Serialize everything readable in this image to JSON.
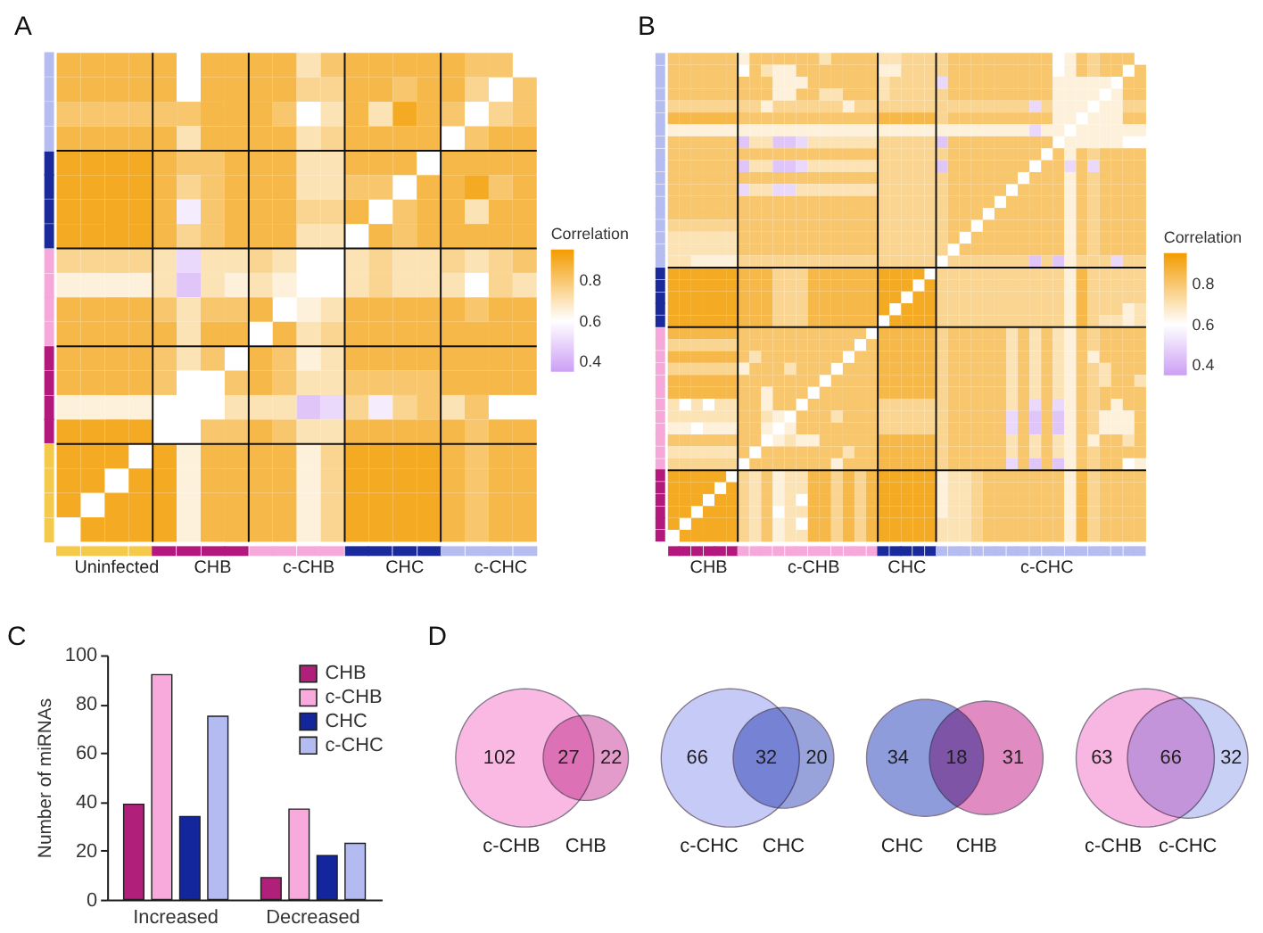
{
  "chart_data": [
    {
      "type": "heatmap",
      "title": "A",
      "clabel": "Correlation",
      "clim": [
        0.35,
        0.95
      ],
      "cticks": [
        0.4,
        0.6,
        0.8
      ],
      "categories": [
        null,
        null,
        "Uninfected",
        null,
        null,
        null,
        "CHB",
        null,
        null,
        null,
        "c-CHB",
        null,
        null,
        null,
        "CHC",
        null,
        null,
        null,
        "c-CHC",
        null
      ],
      "y_categories": [
        null,
        null,
        null,
        null,
        null,
        null,
        null,
        null,
        null,
        null,
        null,
        null,
        null,
        null,
        null,
        null,
        null,
        null,
        null,
        null
      ],
      "colors": [
        "#f5c94a",
        "#f5c94a",
        "#f5c94a",
        "#f5c94a",
        "#b3197d",
        "#b3197d",
        "#b3197d",
        "#b3197d",
        "#f5a8d9",
        "#f5a8d9",
        "#f5a8d9",
        "#f5a8d9",
        "#1b2a9a",
        "#1b2a9a",
        "#1b2a9a",
        "#1b2a9a",
        "#b4bcf0",
        "#b4bcf0",
        "#b4bcf0",
        "#b4bcf0"
      ],
      "cells": [
        [
          0.85,
          0.85,
          0.85,
          0.85,
          0.85,
          0.6,
          0.85,
          0.85,
          0.85,
          0.85,
          0.7,
          0.8,
          0.85,
          0.85,
          0.85,
          0.85,
          0.85,
          0.8,
          0.8,
          null
        ],
        [
          0.85,
          0.85,
          0.85,
          0.85,
          0.85,
          0.6,
          0.85,
          0.85,
          0.85,
          0.85,
          0.75,
          0.75,
          0.85,
          0.85,
          0.8,
          0.85,
          0.85,
          0.75,
          null,
          0.8
        ],
        [
          0.8,
          0.8,
          0.8,
          0.8,
          0.8,
          0.8,
          0.85,
          0.85,
          0.85,
          0.8,
          0.6,
          0.7,
          0.85,
          0.7,
          0.9,
          0.85,
          0.8,
          null,
          0.75,
          0.8
        ],
        [
          0.85,
          0.85,
          0.85,
          0.85,
          0.85,
          0.7,
          0.85,
          0.85,
          0.85,
          0.85,
          0.7,
          0.75,
          0.85,
          0.85,
          0.85,
          0.85,
          null,
          0.8,
          0.85,
          0.85
        ],
        [
          0.9,
          0.9,
          0.9,
          0.9,
          0.85,
          0.8,
          0.8,
          0.85,
          0.85,
          0.85,
          0.7,
          0.7,
          0.85,
          0.85,
          0.85,
          null,
          0.85,
          0.85,
          0.85,
          0.85
        ],
        [
          0.9,
          0.9,
          0.9,
          0.9,
          0.85,
          0.75,
          0.8,
          0.85,
          0.85,
          0.85,
          0.7,
          0.7,
          0.8,
          0.8,
          null,
          0.85,
          0.85,
          0.9,
          0.8,
          0.85
        ],
        [
          0.9,
          0.9,
          0.9,
          0.9,
          0.85,
          0.55,
          0.8,
          0.85,
          0.85,
          0.85,
          0.75,
          0.75,
          0.85,
          null,
          0.8,
          0.85,
          0.85,
          0.7,
          0.85,
          0.85
        ],
        [
          0.9,
          0.9,
          0.9,
          0.9,
          0.85,
          0.75,
          0.8,
          0.85,
          0.85,
          0.85,
          0.7,
          0.7,
          null,
          0.85,
          0.8,
          0.85,
          0.85,
          0.85,
          0.85,
          0.85
        ],
        [
          0.75,
          0.75,
          0.75,
          0.75,
          0.7,
          0.5,
          0.7,
          0.7,
          0.75,
          0.7,
          0.6,
          null,
          0.7,
          0.75,
          0.7,
          0.7,
          0.75,
          0.7,
          0.75,
          0.8
        ],
        [
          0.65,
          0.65,
          0.65,
          0.65,
          0.7,
          0.45,
          0.7,
          0.65,
          0.7,
          0.65,
          null,
          0.6,
          0.7,
          0.75,
          0.7,
          0.7,
          0.7,
          0.6,
          0.75,
          0.7
        ],
        [
          0.85,
          0.85,
          0.85,
          0.85,
          0.8,
          0.7,
          0.8,
          0.8,
          0.85,
          null,
          0.65,
          0.7,
          0.85,
          0.85,
          0.85,
          0.85,
          0.85,
          0.8,
          0.85,
          0.85
        ],
        [
          0.85,
          0.85,
          0.85,
          0.85,
          0.85,
          0.7,
          0.85,
          0.85,
          null,
          0.85,
          0.7,
          0.75,
          0.85,
          0.85,
          0.85,
          0.85,
          0.85,
          0.85,
          0.85,
          0.85
        ],
        [
          0.85,
          0.85,
          0.85,
          0.85,
          0.8,
          0.7,
          0.8,
          null,
          0.85,
          0.8,
          0.65,
          0.7,
          0.85,
          0.85,
          0.85,
          0.85,
          0.85,
          0.85,
          0.85,
          0.85
        ],
        [
          0.85,
          0.85,
          0.85,
          0.85,
          0.8,
          0.6,
          null,
          0.8,
          0.85,
          0.8,
          0.7,
          0.7,
          0.8,
          0.8,
          0.8,
          0.8,
          0.85,
          0.85,
          0.85,
          0.85
        ],
        [
          0.65,
          0.65,
          0.65,
          0.65,
          0.6,
          null,
          0.6,
          0.7,
          0.7,
          0.7,
          0.45,
          0.5,
          0.75,
          0.55,
          0.75,
          0.8,
          0.7,
          0.8,
          0.6,
          0.6
        ],
        [
          0.9,
          0.9,
          0.9,
          0.9,
          null,
          0.6,
          0.8,
          0.8,
          0.85,
          0.8,
          0.7,
          0.7,
          0.85,
          0.85,
          0.85,
          0.85,
          0.85,
          0.8,
          0.85,
          0.85
        ],
        [
          0.9,
          0.9,
          0.9,
          null,
          0.9,
          0.65,
          0.85,
          0.85,
          0.85,
          0.85,
          0.65,
          0.75,
          0.9,
          0.9,
          0.9,
          0.9,
          0.85,
          0.8,
          0.85,
          0.85
        ],
        [
          0.9,
          0.9,
          null,
          0.9,
          0.9,
          0.65,
          0.85,
          0.85,
          0.85,
          0.85,
          0.65,
          0.75,
          0.9,
          0.9,
          0.9,
          0.9,
          0.85,
          0.8,
          0.85,
          0.85
        ],
        [
          0.9,
          null,
          0.9,
          0.9,
          0.9,
          0.65,
          0.85,
          0.85,
          0.85,
          0.85,
          0.65,
          0.75,
          0.9,
          0.9,
          0.9,
          0.9,
          0.85,
          0.8,
          0.85,
          0.85
        ],
        [
          null,
          0.9,
          0.9,
          0.9,
          0.9,
          0.65,
          0.85,
          0.85,
          0.85,
          0.85,
          0.65,
          0.75,
          0.9,
          0.9,
          0.9,
          0.9,
          0.85,
          0.8,
          0.85,
          0.85
        ]
      ]
    },
    {
      "type": "heatmap",
      "title": "B",
      "clabel": "Correlation",
      "clim": [
        0.35,
        0.95
      ],
      "cticks": [
        0.4,
        0.6,
        0.8
      ],
      "categories": [
        null,
        null,
        null,
        "CHB",
        null,
        null,
        null,
        null,
        null,
        null,
        null,
        null,
        "c-CHB",
        null,
        null,
        null,
        null,
        null,
        null,
        null,
        "CHC",
        null,
        null,
        null,
        null,
        null,
        null,
        null,
        null,
        null,
        null,
        null,
        "c-CHC",
        null,
        null,
        null,
        null,
        null,
        null,
        null,
        null
      ],
      "y_categories": [
        null,
        null,
        null,
        null,
        null,
        null,
        null,
        null,
        null,
        null,
        null,
        null,
        null,
        null,
        null,
        null,
        null,
        null,
        null,
        null,
        null,
        null,
        null,
        null,
        null,
        null,
        null,
        null,
        null,
        null,
        null,
        null,
        null,
        null,
        null,
        null,
        null,
        null,
        null,
        null,
        null
      ],
      "colors": [
        "#b3197d",
        "#b3197d",
        "#b3197d",
        "#b3197d",
        "#b3197d",
        "#b3197d",
        "#f5a8d9",
        "#f5a8d9",
        "#f5a8d9",
        "#f5a8d9",
        "#f5a8d9",
        "#f5a8d9",
        "#f5a8d9",
        "#f5a8d9",
        "#f5a8d9",
        "#f5a8d9",
        "#f5a8d9",
        "#f5a8d9",
        "#1b2a9a",
        "#1b2a9a",
        "#1b2a9a",
        "#1b2a9a",
        "#1b2a9a",
        "#b4bcf0",
        "#b4bcf0",
        "#b4bcf0",
        "#b4bcf0",
        "#b4bcf0",
        "#b4bcf0",
        "#b4bcf0",
        "#b4bcf0",
        "#b4bcf0",
        "#b4bcf0",
        "#b4bcf0",
        "#b4bcf0",
        "#b4bcf0",
        "#b4bcf0",
        "#b4bcf0",
        "#b4bcf0",
        "#b4bcf0",
        "#b4bcf0"
      ],
      "cells": [
        [
          0.8,
          0.8,
          0.8,
          0.8,
          0.8,
          0.8,
          0.65,
          0.8,
          0.8,
          0.8,
          0.8,
          0.8,
          0.8,
          0.7,
          0.8,
          0.8,
          0.8,
          0.8,
          0.7,
          0.7,
          0.75,
          0.75,
          0.75,
          0.75,
          0.8,
          0.8,
          0.8,
          0.8,
          0.8,
          0.8,
          0.8,
          0.8,
          0.8,
          0.6,
          0.65,
          0.8,
          0.75,
          0.8,
          0.8,
          0.8,
          null
        ],
        [
          0.8,
          0.8,
          0.8,
          0.8,
          0.8,
          0.8,
          0.6,
          0.8,
          0.7,
          0.65,
          0.65,
          0.8,
          0.8,
          0.8,
          0.8,
          0.8,
          0.8,
          0.8,
          0.65,
          0.65,
          0.75,
          0.75,
          0.75,
          0.75,
          0.8,
          0.8,
          0.8,
          0.8,
          0.8,
          0.8,
          0.8,
          0.8,
          0.8,
          0.6,
          0.65,
          0.8,
          0.75,
          0.8,
          0.8,
          null,
          0.8
        ],
        [
          0.8,
          0.8,
          0.8,
          0.8,
          0.8,
          0.8,
          0.8,
          0.8,
          0.8,
          0.65,
          0.65,
          0.65,
          0.8,
          0.8,
          0.8,
          0.8,
          0.8,
          0.8,
          0.7,
          0.75,
          0.75,
          0.75,
          0.75,
          0.5,
          0.8,
          0.8,
          0.8,
          0.8,
          0.8,
          0.8,
          0.8,
          0.8,
          0.8,
          0.65,
          0.65,
          0.65,
          0.65,
          0.65,
          null,
          0.8,
          0.8
        ],
        [
          0.8,
          0.8,
          0.8,
          0.8,
          0.8,
          0.8,
          0.8,
          0.8,
          0.8,
          0.65,
          0.65,
          0.8,
          0.8,
          0.7,
          0.7,
          0.8,
          0.8,
          0.8,
          0.7,
          0.75,
          0.75,
          0.75,
          0.75,
          0.75,
          0.8,
          0.8,
          0.8,
          0.8,
          0.8,
          0.8,
          0.8,
          0.8,
          0.8,
          0.65,
          0.65,
          0.65,
          0.65,
          null,
          0.65,
          0.8,
          0.8
        ],
        [
          0.75,
          0.75,
          0.75,
          0.75,
          0.75,
          0.75,
          0.75,
          0.75,
          0.65,
          0.75,
          0.75,
          0.75,
          0.75,
          0.75,
          0.75,
          0.65,
          0.75,
          0.75,
          0.75,
          0.75,
          0.75,
          0.75,
          0.75,
          0.75,
          0.75,
          0.75,
          0.75,
          0.75,
          0.75,
          0.75,
          0.75,
          0.5,
          0.75,
          0.65,
          0.65,
          0.65,
          null,
          0.65,
          0.65,
          0.75,
          0.75
        ],
        [
          0.85,
          0.85,
          0.85,
          0.85,
          0.85,
          0.85,
          0.8,
          0.8,
          0.8,
          0.8,
          0.8,
          0.8,
          0.8,
          0.8,
          0.8,
          0.8,
          0.8,
          0.8,
          0.85,
          0.85,
          0.85,
          0.85,
          0.85,
          0.75,
          0.8,
          0.8,
          0.8,
          0.8,
          0.8,
          0.8,
          0.8,
          0.8,
          0.8,
          0.65,
          0.65,
          null,
          0.65,
          0.65,
          0.65,
          0.8,
          0.8
        ],
        [
          0.65,
          0.65,
          0.65,
          0.65,
          0.65,
          0.65,
          0.65,
          0.65,
          0.65,
          0.65,
          0.65,
          0.65,
          0.65,
          0.65,
          0.65,
          0.65,
          0.65,
          0.65,
          0.65,
          0.65,
          0.65,
          0.65,
          0.65,
          0.65,
          0.65,
          0.65,
          0.65,
          0.65,
          0.65,
          0.65,
          0.65,
          0.5,
          0.65,
          0.65,
          null,
          0.65,
          0.65,
          0.65,
          0.65,
          0.65,
          0.65
        ],
        [
          0.8,
          0.8,
          0.8,
          0.8,
          0.8,
          0.8,
          0.45,
          0.7,
          0.7,
          0.45,
          0.45,
          0.5,
          0.7,
          0.7,
          0.7,
          0.7,
          0.7,
          0.7,
          0.75,
          0.75,
          0.75,
          0.75,
          0.75,
          0.45,
          0.8,
          0.8,
          0.8,
          0.8,
          0.8,
          0.8,
          0.8,
          0.8,
          0.8,
          null,
          0.65,
          0.65,
          0.65,
          0.65,
          0.65,
          0.6,
          0.6
        ],
        [
          0.8,
          0.8,
          0.8,
          0.8,
          0.8,
          0.8,
          0.8,
          0.8,
          0.8,
          0.8,
          0.8,
          0.8,
          0.8,
          0.8,
          0.8,
          0.8,
          0.8,
          0.8,
          0.75,
          0.75,
          0.75,
          0.75,
          0.75,
          0.75,
          0.8,
          0.8,
          0.8,
          0.8,
          0.8,
          0.8,
          0.8,
          0.8,
          null,
          0.8,
          0.65,
          0.8,
          0.75,
          0.8,
          0.8,
          0.8,
          0.8
        ],
        [
          0.8,
          0.8,
          0.8,
          0.8,
          0.8,
          0.8,
          0.45,
          0.7,
          0.7,
          0.45,
          0.45,
          0.5,
          0.7,
          0.7,
          0.7,
          0.7,
          0.7,
          0.7,
          0.75,
          0.75,
          0.75,
          0.75,
          0.75,
          0.45,
          0.8,
          0.8,
          0.8,
          0.8,
          0.8,
          0.8,
          0.8,
          null,
          0.8,
          0.8,
          0.5,
          0.8,
          0.5,
          0.8,
          0.8,
          0.8,
          0.8
        ],
        [
          0.8,
          0.8,
          0.8,
          0.8,
          0.8,
          0.8,
          0.8,
          0.8,
          0.8,
          0.8,
          0.8,
          0.8,
          0.8,
          0.8,
          0.8,
          0.8,
          0.8,
          0.8,
          0.75,
          0.75,
          0.75,
          0.75,
          0.75,
          0.75,
          0.8,
          0.8,
          0.8,
          0.8,
          0.8,
          0.8,
          null,
          0.8,
          0.8,
          0.8,
          0.65,
          0.8,
          0.75,
          0.8,
          0.8,
          0.8,
          0.8
        ],
        [
          0.8,
          0.8,
          0.8,
          0.8,
          0.8,
          0.8,
          0.5,
          0.7,
          0.7,
          0.5,
          0.5,
          0.7,
          0.7,
          0.7,
          0.7,
          0.7,
          0.7,
          0.7,
          0.75,
          0.75,
          0.75,
          0.75,
          0.75,
          0.75,
          0.8,
          0.8,
          0.8,
          0.8,
          0.8,
          null,
          0.8,
          0.8,
          0.8,
          0.8,
          0.65,
          0.8,
          0.75,
          0.8,
          0.8,
          0.8,
          0.8
        ],
        [
          0.8,
          0.8,
          0.8,
          0.8,
          0.8,
          0.8,
          0.8,
          0.8,
          0.8,
          0.8,
          0.8,
          0.8,
          0.8,
          0.8,
          0.8,
          0.8,
          0.8,
          0.8,
          0.75,
          0.75,
          0.75,
          0.75,
          0.75,
          0.75,
          0.8,
          0.8,
          0.8,
          0.8,
          null,
          0.8,
          0.8,
          0.8,
          0.8,
          0.8,
          0.65,
          0.8,
          0.75,
          0.8,
          0.8,
          0.8,
          0.8
        ],
        [
          0.8,
          0.8,
          0.8,
          0.8,
          0.8,
          0.8,
          0.8,
          0.8,
          0.8,
          0.8,
          0.8,
          0.8,
          0.8,
          0.8,
          0.8,
          0.8,
          0.8,
          0.8,
          0.75,
          0.75,
          0.75,
          0.75,
          0.75,
          0.75,
          0.8,
          0.8,
          0.8,
          null,
          0.8,
          0.8,
          0.8,
          0.8,
          0.8,
          0.8,
          0.65,
          0.8,
          0.75,
          0.8,
          0.8,
          0.8,
          0.8
        ],
        [
          0.75,
          0.75,
          0.75,
          0.75,
          0.75,
          0.75,
          0.8,
          0.8,
          0.8,
          0.8,
          0.8,
          0.8,
          0.8,
          0.8,
          0.8,
          0.8,
          0.8,
          0.8,
          0.75,
          0.75,
          0.75,
          0.75,
          0.75,
          0.75,
          0.8,
          0.8,
          null,
          0.8,
          0.8,
          0.8,
          0.8,
          0.8,
          0.8,
          0.8,
          0.65,
          0.8,
          0.75,
          0.8,
          0.8,
          0.8,
          0.8
        ],
        [
          0.7,
          0.7,
          0.7,
          0.7,
          0.7,
          0.7,
          0.8,
          0.8,
          0.8,
          0.8,
          0.8,
          0.8,
          0.8,
          0.8,
          0.8,
          0.8,
          0.8,
          0.8,
          0.75,
          0.75,
          0.75,
          0.75,
          0.75,
          0.75,
          0.8,
          null,
          0.8,
          0.8,
          0.8,
          0.8,
          0.8,
          0.8,
          0.8,
          0.8,
          0.65,
          0.8,
          0.75,
          0.8,
          0.8,
          0.8,
          0.8
        ],
        [
          0.7,
          0.7,
          0.7,
          0.7,
          0.7,
          0.7,
          0.8,
          0.8,
          0.8,
          0.8,
          0.8,
          0.8,
          0.8,
          0.8,
          0.8,
          0.8,
          0.8,
          0.8,
          0.75,
          0.75,
          0.75,
          0.75,
          0.75,
          0.75,
          null,
          0.8,
          0.8,
          0.8,
          0.8,
          0.8,
          0.8,
          0.8,
          0.8,
          0.8,
          0.65,
          0.8,
          0.75,
          0.8,
          0.8,
          0.8,
          0.8
        ],
        [
          0.7,
          0.7,
          0.65,
          0.65,
          0.65,
          0.65,
          0.75,
          0.75,
          0.75,
          0.75,
          0.75,
          0.75,
          0.75,
          0.75,
          0.75,
          0.75,
          0.75,
          0.75,
          0.75,
          0.75,
          0.75,
          0.75,
          0.75,
          null,
          0.75,
          0.75,
          0.75,
          0.75,
          0.75,
          0.75,
          0.75,
          0.45,
          0.75,
          0.45,
          0.65,
          0.75,
          0.75,
          0.75,
          0.5,
          0.75,
          0.75
        ],
        [
          0.9,
          0.9,
          0.9,
          0.9,
          0.9,
          0.9,
          0.85,
          0.85,
          0.85,
          0.75,
          0.75,
          0.75,
          0.85,
          0.85,
          0.85,
          0.85,
          0.85,
          0.85,
          0.9,
          0.9,
          0.9,
          0.9,
          null,
          0.75,
          0.75,
          0.75,
          0.75,
          0.75,
          0.75,
          0.75,
          0.75,
          0.75,
          0.75,
          0.75,
          0.65,
          0.85,
          0.75,
          0.75,
          0.75,
          0.75,
          0.75
        ],
        [
          0.9,
          0.9,
          0.9,
          0.9,
          0.9,
          0.9,
          0.85,
          0.85,
          0.85,
          0.75,
          0.75,
          0.75,
          0.85,
          0.85,
          0.85,
          0.85,
          0.85,
          0.85,
          0.9,
          0.9,
          0.9,
          null,
          0.9,
          0.75,
          0.75,
          0.75,
          0.75,
          0.75,
          0.75,
          0.75,
          0.75,
          0.75,
          0.75,
          0.75,
          0.65,
          0.85,
          0.75,
          0.75,
          0.75,
          0.75,
          0.75
        ],
        [
          0.9,
          0.9,
          0.9,
          0.9,
          0.9,
          0.9,
          0.85,
          0.85,
          0.85,
          0.75,
          0.75,
          0.75,
          0.85,
          0.85,
          0.85,
          0.85,
          0.85,
          0.85,
          0.9,
          0.9,
          null,
          0.9,
          0.9,
          0.75,
          0.75,
          0.75,
          0.75,
          0.75,
          0.75,
          0.75,
          0.75,
          0.75,
          0.75,
          0.75,
          0.65,
          0.85,
          0.75,
          0.75,
          0.75,
          0.75,
          0.75
        ],
        [
          0.9,
          0.9,
          0.9,
          0.9,
          0.9,
          0.9,
          0.85,
          0.85,
          0.85,
          0.75,
          0.75,
          0.75,
          0.85,
          0.85,
          0.85,
          0.85,
          0.85,
          0.85,
          0.9,
          null,
          0.9,
          0.9,
          0.9,
          0.75,
          0.75,
          0.75,
          0.75,
          0.75,
          0.75,
          0.75,
          0.75,
          0.75,
          0.75,
          0.75,
          0.65,
          0.85,
          0.75,
          0.75,
          0.75,
          0.65,
          0.7
        ],
        [
          0.9,
          0.9,
          0.9,
          0.9,
          0.9,
          0.9,
          0.85,
          0.85,
          0.85,
          0.75,
          0.75,
          0.75,
          0.85,
          0.85,
          0.85,
          0.85,
          0.85,
          0.85,
          null,
          0.9,
          0.9,
          0.9,
          0.9,
          0.75,
          0.75,
          0.75,
          0.75,
          0.75,
          0.75,
          0.75,
          0.75,
          0.75,
          0.75,
          0.75,
          0.65,
          0.85,
          0.75,
          0.7,
          0.7,
          0.65,
          0.7
        ],
        [
          0.85,
          0.85,
          0.85,
          0.85,
          0.85,
          0.85,
          0.8,
          0.8,
          0.8,
          0.8,
          0.8,
          0.8,
          0.8,
          0.8,
          0.8,
          0.8,
          0.8,
          null,
          0.85,
          0.85,
          0.85,
          0.85,
          0.85,
          0.75,
          0.8,
          0.8,
          0.8,
          0.8,
          0.8,
          0.7,
          0.8,
          0.7,
          0.8,
          0.7,
          0.65,
          0.8,
          0.75,
          0.8,
          0.8,
          0.8,
          0.8
        ],
        [
          0.75,
          0.75,
          0.75,
          0.75,
          0.75,
          0.75,
          0.8,
          0.8,
          0.8,
          0.8,
          0.8,
          0.8,
          0.8,
          0.8,
          0.8,
          0.8,
          null,
          0.8,
          0.85,
          0.85,
          0.85,
          0.85,
          0.85,
          0.75,
          0.8,
          0.8,
          0.8,
          0.8,
          0.8,
          0.7,
          0.8,
          0.7,
          0.8,
          0.7,
          0.65,
          0.8,
          0.75,
          0.8,
          0.8,
          0.8,
          0.8
        ],
        [
          0.85,
          0.85,
          0.85,
          0.85,
          0.85,
          0.85,
          0.8,
          0.7,
          0.8,
          0.8,
          0.8,
          0.8,
          0.8,
          0.8,
          0.8,
          null,
          0.8,
          0.8,
          0.85,
          0.85,
          0.85,
          0.85,
          0.85,
          0.75,
          0.8,
          0.8,
          0.8,
          0.8,
          0.8,
          0.7,
          0.8,
          0.7,
          0.8,
          0.7,
          0.65,
          0.8,
          0.65,
          0.8,
          0.8,
          0.8,
          0.8
        ],
        [
          0.75,
          0.75,
          0.75,
          0.75,
          0.75,
          0.75,
          0.65,
          0.8,
          0.8,
          0.8,
          0.7,
          0.8,
          0.8,
          0.8,
          null,
          0.8,
          0.8,
          0.8,
          0.85,
          0.85,
          0.85,
          0.85,
          0.85,
          0.75,
          0.8,
          0.8,
          0.8,
          0.8,
          0.8,
          0.7,
          0.8,
          0.7,
          0.8,
          0.7,
          0.65,
          0.8,
          0.75,
          0.7,
          0.8,
          0.8,
          0.8
        ],
        [
          0.85,
          0.85,
          0.85,
          0.85,
          0.85,
          0.85,
          0.8,
          0.8,
          0.8,
          0.8,
          0.8,
          0.8,
          0.8,
          null,
          0.8,
          0.8,
          0.8,
          0.8,
          0.85,
          0.85,
          0.85,
          0.85,
          0.85,
          0.75,
          0.8,
          0.8,
          0.8,
          0.8,
          0.8,
          0.7,
          0.8,
          0.7,
          0.8,
          0.7,
          0.65,
          0.8,
          0.75,
          0.7,
          0.8,
          0.8,
          0.7
        ],
        [
          0.85,
          0.85,
          0.85,
          0.85,
          0.85,
          0.85,
          0.8,
          0.8,
          0.65,
          0.8,
          0.8,
          0.8,
          null,
          0.8,
          0.8,
          0.8,
          0.8,
          0.8,
          0.85,
          0.85,
          0.85,
          0.85,
          0.85,
          0.75,
          0.8,
          0.8,
          0.8,
          0.8,
          0.8,
          0.7,
          0.8,
          0.7,
          0.8,
          0.7,
          0.65,
          0.8,
          0.75,
          0.8,
          0.8,
          0.8,
          0.8
        ],
        [
          0.7,
          0.6,
          0.7,
          0.6,
          0.7,
          0.7,
          0.8,
          0.8,
          0.65,
          0.8,
          0.8,
          null,
          0.8,
          0.8,
          0.8,
          0.8,
          0.8,
          0.8,
          0.75,
          0.75,
          0.75,
          0.75,
          0.75,
          0.75,
          0.8,
          0.8,
          0.8,
          0.8,
          0.8,
          0.7,
          0.8,
          0.5,
          0.8,
          0.5,
          0.65,
          0.8,
          0.75,
          0.8,
          0.65,
          0.8,
          0.8
        ],
        [
          0.7,
          0.7,
          0.7,
          0.7,
          0.7,
          0.7,
          0.8,
          0.8,
          0.7,
          0.65,
          null,
          0.8,
          0.8,
          0.8,
          0.7,
          0.8,
          0.8,
          0.8,
          0.75,
          0.75,
          0.75,
          0.75,
          0.75,
          0.75,
          0.8,
          0.8,
          0.8,
          0.8,
          0.8,
          0.5,
          0.8,
          0.45,
          0.8,
          0.45,
          0.65,
          0.8,
          0.75,
          0.65,
          0.65,
          0.65,
          0.8
        ],
        [
          0.65,
          0.65,
          0.6,
          0.65,
          0.65,
          0.65,
          0.8,
          0.8,
          0.65,
          null,
          0.65,
          0.8,
          0.8,
          0.8,
          0.8,
          0.8,
          0.8,
          0.8,
          0.75,
          0.75,
          0.75,
          0.75,
          0.75,
          0.75,
          0.8,
          0.8,
          0.8,
          0.8,
          0.8,
          0.5,
          0.8,
          0.45,
          0.8,
          0.45,
          0.65,
          0.8,
          0.75,
          0.65,
          0.65,
          0.65,
          0.8
        ],
        [
          0.8,
          0.8,
          0.8,
          0.8,
          0.8,
          0.8,
          0.8,
          0.8,
          null,
          0.65,
          0.7,
          0.65,
          0.65,
          0.8,
          0.8,
          0.8,
          0.8,
          0.8,
          0.85,
          0.85,
          0.85,
          0.85,
          0.85,
          0.75,
          0.8,
          0.8,
          0.8,
          0.8,
          0.8,
          0.7,
          0.8,
          0.7,
          0.8,
          0.7,
          0.65,
          0.8,
          0.65,
          0.8,
          0.8,
          0.7,
          0.8
        ],
        [
          0.7,
          0.7,
          0.7,
          0.7,
          0.7,
          0.7,
          0.8,
          null,
          0.8,
          0.8,
          0.8,
          0.8,
          0.8,
          0.8,
          0.8,
          0.7,
          0.8,
          0.8,
          0.85,
          0.85,
          0.85,
          0.85,
          0.85,
          0.75,
          0.8,
          0.8,
          0.8,
          0.8,
          0.8,
          0.7,
          0.8,
          0.7,
          0.8,
          0.7,
          0.65,
          0.8,
          0.75,
          0.8,
          0.8,
          0.8,
          0.8
        ],
        [
          0.75,
          0.75,
          0.75,
          0.75,
          0.75,
          0.75,
          null,
          0.8,
          0.8,
          0.8,
          0.8,
          0.8,
          0.8,
          0.8,
          0.65,
          0.8,
          0.8,
          0.8,
          0.85,
          0.85,
          0.85,
          0.85,
          0.85,
          0.75,
          0.8,
          0.8,
          0.8,
          0.8,
          0.8,
          0.5,
          0.8,
          0.45,
          0.8,
          0.45,
          0.65,
          0.8,
          0.75,
          0.8,
          0.8,
          0.6,
          0.65
        ],
        [
          0.9,
          0.9,
          0.9,
          0.9,
          0.9,
          null,
          0.75,
          0.7,
          0.8,
          0.65,
          0.7,
          0.7,
          0.85,
          0.85,
          0.75,
          0.85,
          0.75,
          0.85,
          0.9,
          0.9,
          0.9,
          0.9,
          0.9,
          0.65,
          0.7,
          0.7,
          0.75,
          0.8,
          0.8,
          0.8,
          0.8,
          0.8,
          0.8,
          0.8,
          0.65,
          0.85,
          0.75,
          0.8,
          0.8,
          0.8,
          0.8
        ],
        [
          0.9,
          0.9,
          0.9,
          0.9,
          null,
          0.9,
          0.75,
          0.7,
          0.8,
          0.65,
          0.7,
          0.7,
          0.85,
          0.85,
          0.75,
          0.85,
          0.75,
          0.85,
          0.9,
          0.9,
          0.9,
          0.9,
          0.9,
          0.65,
          0.7,
          0.7,
          0.75,
          0.8,
          0.8,
          0.8,
          0.8,
          0.8,
          0.8,
          0.8,
          0.65,
          0.85,
          0.75,
          0.8,
          0.8,
          0.8,
          0.8
        ],
        [
          0.9,
          0.9,
          0.9,
          null,
          0.9,
          0.9,
          0.75,
          0.7,
          0.8,
          0.65,
          0.7,
          0.6,
          0.85,
          0.85,
          0.75,
          0.85,
          0.75,
          0.85,
          0.9,
          0.9,
          0.9,
          0.9,
          0.9,
          0.65,
          0.7,
          0.7,
          0.75,
          0.8,
          0.8,
          0.8,
          0.8,
          0.8,
          0.8,
          0.8,
          0.65,
          0.85,
          0.75,
          0.8,
          0.8,
          0.8,
          0.8
        ],
        [
          0.9,
          0.9,
          null,
          0.9,
          0.9,
          0.9,
          0.75,
          0.7,
          0.8,
          0.6,
          0.7,
          0.7,
          0.85,
          0.85,
          0.75,
          0.85,
          0.75,
          0.85,
          0.9,
          0.9,
          0.9,
          0.9,
          0.9,
          0.65,
          0.7,
          0.7,
          0.75,
          0.8,
          0.8,
          0.8,
          0.8,
          0.8,
          0.8,
          0.8,
          0.65,
          0.85,
          0.75,
          0.8,
          0.8,
          0.8,
          0.8
        ],
        [
          0.9,
          null,
          0.9,
          0.9,
          0.9,
          0.9,
          0.75,
          0.7,
          0.8,
          0.65,
          0.7,
          0.6,
          0.85,
          0.85,
          0.75,
          0.85,
          0.75,
          0.85,
          0.9,
          0.9,
          0.9,
          0.9,
          0.9,
          0.7,
          0.7,
          0.7,
          0.75,
          0.8,
          0.8,
          0.8,
          0.8,
          0.8,
          0.8,
          0.8,
          0.65,
          0.85,
          0.75,
          0.8,
          0.8,
          0.8,
          0.8
        ],
        [
          null,
          0.9,
          0.9,
          0.9,
          0.9,
          0.9,
          0.75,
          0.7,
          0.8,
          0.65,
          0.7,
          0.7,
          0.85,
          0.85,
          0.75,
          0.85,
          0.75,
          0.85,
          0.9,
          0.9,
          0.9,
          0.9,
          0.9,
          0.7,
          0.7,
          0.7,
          0.75,
          0.8,
          0.8,
          0.8,
          0.8,
          0.8,
          0.8,
          0.8,
          0.65,
          0.85,
          0.75,
          0.8,
          0.8,
          0.8,
          0.8
        ]
      ]
    },
    {
      "type": "bar",
      "title": "C",
      "categories": [
        "Increased",
        "Decreased"
      ],
      "ylabel": "Number of miRNAs",
      "ylim": [
        0,
        100
      ],
      "yticks": [
        0,
        20,
        40,
        60,
        80,
        100
      ],
      "legend": "top right",
      "series": [
        {
          "name": "CHB",
          "color": "#b0207a",
          "values": [
            39,
            9
          ]
        },
        {
          "name": "c-CHB",
          "color": "#f8aadc",
          "values": [
            92,
            37
          ]
        },
        {
          "name": "CHC",
          "color": "#14269b",
          "values": [
            34,
            18
          ]
        },
        {
          "name": "c-CHC",
          "color": "#b4bbf0",
          "values": [
            75,
            23
          ]
        }
      ]
    },
    {
      "type": "other",
      "title": "D",
      "categories": [
        "c-CHB",
        null,
        "CHB"
      ],
      "values": [
        102,
        27,
        22
      ],
      "colors": [
        "#f9b9e3",
        null,
        "#e39bcb"
      ],
      "data_labels": true
    },
    {
      "type": "other",
      "categories": [
        "c-CHC",
        null,
        "CHC"
      ],
      "values": [
        66,
        32,
        20
      ],
      "colors": [
        "#c5cbf6",
        null,
        "#99a3db"
      ],
      "data_labels": true
    },
    {
      "type": "other",
      "categories": [
        "CHC",
        null,
        "CHB"
      ],
      "values": [
        34,
        18,
        31
      ],
      "colors": [
        "#8f9cdc",
        null,
        "#e08bc1"
      ],
      "data_labels": true
    },
    {
      "type": "other",
      "categories": [
        "c-CHB",
        null,
        "c-CHC"
      ],
      "values": [
        63,
        66,
        32
      ],
      "colors": [
        "#f8b6e2",
        null,
        "#c9d0f6"
      ],
      "data_labels": true
    }
  ]
}
